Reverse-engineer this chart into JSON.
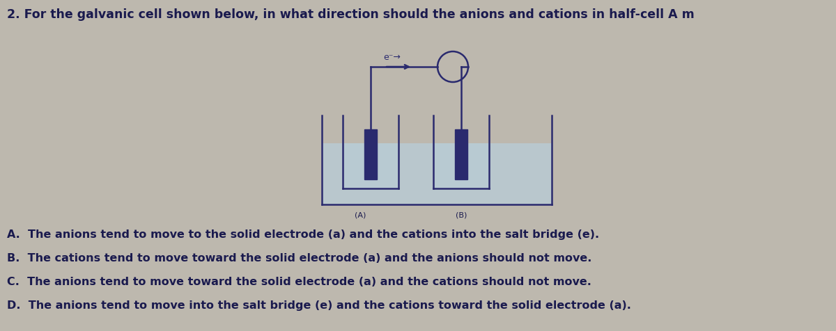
{
  "title": "2. For the galvanic cell shown below, in what direction should the anions and cations in half-cell A m",
  "options": [
    "A.  The anions tend to move to the solid electrode (a) and the cations into the salt bridge (e).",
    "B.  The cations tend to move toward the solid electrode (a) and the anions should not move.",
    "C.  The anions tend to move toward the solid electrode (a) and the cations should not move.",
    "D.  The anions tend to move into the salt bridge (e) and the cations toward the solid electrode (a)."
  ],
  "bg_color": "#bdb8ae",
  "text_color": "#1a1a4e",
  "title_fontsize": 12.5,
  "option_fontsize": 11.5,
  "diagram_color": "#2a2a6e",
  "liquid_color": "#b8cdd8",
  "label_A": "(A)",
  "label_B": "(B)",
  "arrow_label": "e⁻→"
}
